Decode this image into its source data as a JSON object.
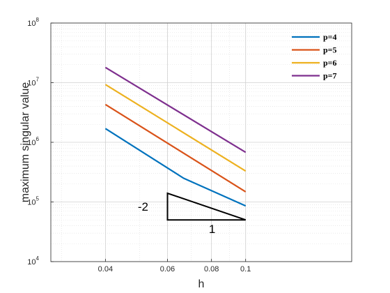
{
  "chart_data": {
    "type": "line",
    "xscale": "log",
    "yscale": "log",
    "xlabel": "h",
    "ylabel": "maximum singular value",
    "xlim": [
      0.028,
      0.2
    ],
    "ylim": [
      10000,
      100000000
    ],
    "xticks": [
      0.04,
      0.06,
      0.08,
      0.1
    ],
    "xtick_labels": [
      "0.04",
      "0.06",
      "0.08",
      "0.1"
    ],
    "yticks": [
      {
        "value": 10000,
        "base": "10",
        "exp": "4"
      },
      {
        "value": 100000,
        "base": "10",
        "exp": "5"
      },
      {
        "value": 1000000,
        "base": "10",
        "exp": "6"
      },
      {
        "value": 10000000,
        "base": "10",
        "exp": "7"
      },
      {
        "value": 100000000,
        "base": "10",
        "exp": "8"
      }
    ],
    "grid": true,
    "minor_grid": true,
    "legend_position": "top-right",
    "series": [
      {
        "name": "p=4",
        "color": "#0072BD",
        "x": [
          0.04,
          0.0667,
          0.1
        ],
        "y": [
          1700000,
          250000,
          86000
        ]
      },
      {
        "name": "p=5",
        "color": "#D95319",
        "x": [
          0.04,
          0.1
        ],
        "y": [
          4300000,
          148000
        ]
      },
      {
        "name": "p=6",
        "color": "#EDB120",
        "x": [
          0.04,
          0.1
        ],
        "y": [
          9300000,
          330000
        ]
      },
      {
        "name": "p=7",
        "color": "#7E2F8E",
        "x": [
          0.04,
          0.1
        ],
        "y": [
          18000000,
          680000
        ]
      }
    ],
    "slope_triangle": {
      "vertices": [
        [
          0.06,
          140000
        ],
        [
          0.06,
          50000
        ],
        [
          0.1,
          50000
        ]
      ],
      "vertical_label": "-2",
      "horizontal_label": "1"
    }
  }
}
